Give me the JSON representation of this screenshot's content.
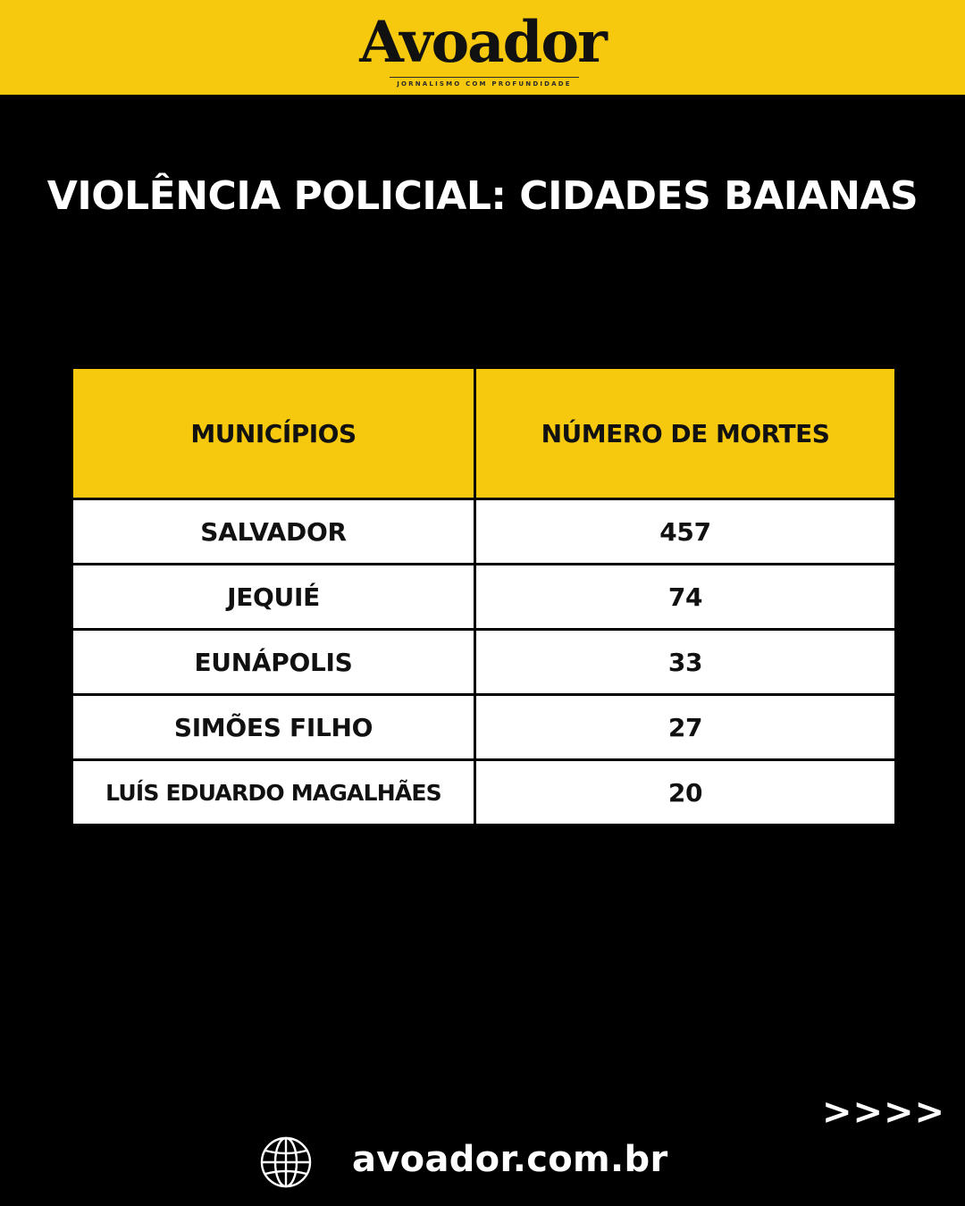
{
  "header": {
    "logo_text": "Avoador",
    "tagline": "JORNALISMO COM PROFUNDIDADE",
    "background_color": "#f6c90e"
  },
  "title": "VIOLÊNCIA POLICIAL: CIDADES BAIANAS",
  "table": {
    "columns": [
      "MUNICÍPIOS",
      "NÚMERO DE MORTES"
    ],
    "rows": [
      {
        "municipio": "SALVADOR",
        "mortes": "457"
      },
      {
        "municipio": "JEQUIÉ",
        "mortes": "74"
      },
      {
        "municipio": "EUNÁPOLIS",
        "mortes": "33"
      },
      {
        "municipio": "SIMÕES FILHO",
        "mortes": "27"
      },
      {
        "municipio": "LUÍS EDUARDO MAGALHÃES",
        "mortes": "20"
      }
    ]
  },
  "footer": {
    "next_indicator": ">>>>",
    "icon": "globe-icon",
    "website": "avoador.com.br"
  }
}
